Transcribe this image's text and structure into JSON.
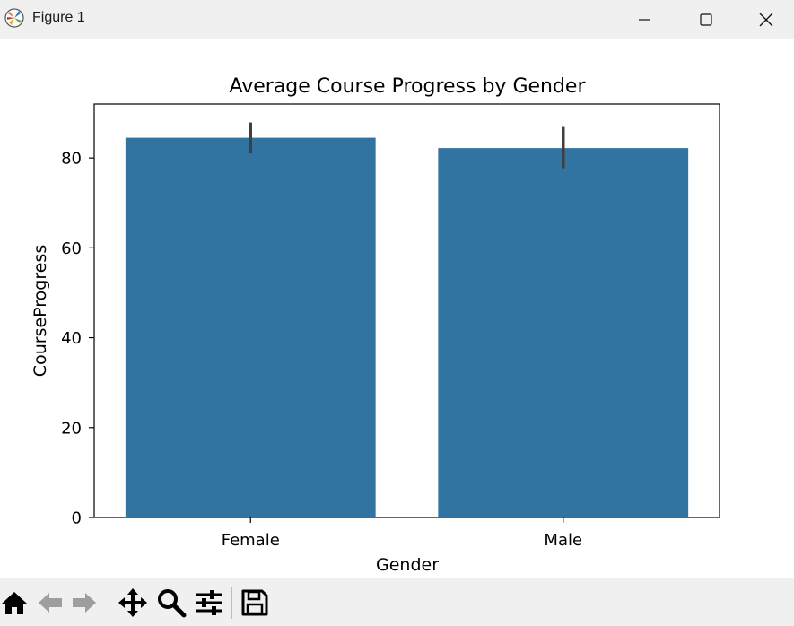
{
  "window": {
    "title": "Figure 1"
  },
  "icons": {
    "app": "matplotlib-icon",
    "minimize": "minimize-icon",
    "maximize": "maximize-icon",
    "close": "close-icon",
    "home": "home-icon",
    "back": "back-arrow-icon",
    "forward": "forward-arrow-icon",
    "pan": "move-icon",
    "zoom": "magnifier-icon",
    "configure": "sliders-icon",
    "save": "floppy-disk-icon"
  },
  "colors": {
    "bar": "#3274a1",
    "errorbar": "#3f3f3f",
    "titlebar_bg": "#f0f0f0",
    "toolbar_bg": "#f0f0f0"
  },
  "chart_data": {
    "type": "bar",
    "title": "Average Course Progress by Gender",
    "xlabel": "Gender",
    "ylabel": "CourseProgress",
    "categories": [
      "Female",
      "Male"
    ],
    "values": [
      84.5,
      82.2
    ],
    "error_low": [
      81.0,
      77.7
    ],
    "error_high": [
      87.9,
      86.9
    ],
    "ylim": [
      0,
      92
    ],
    "yticks": [
      0,
      20,
      40,
      60,
      80
    ],
    "grid": false,
    "legend": "none"
  }
}
